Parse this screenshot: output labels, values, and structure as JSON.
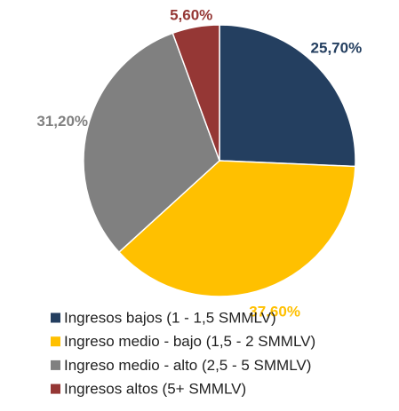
{
  "chart_data": {
    "type": "pie",
    "categories": [
      "Ingresos bajos (1 - 1,5 SMMLV)",
      "Ingreso medio - bajo (1,5 - 2 SMMLV)",
      "Ingreso medio - alto (2,5 - 5 SMMLV)",
      "Ingresos altos (5+ SMMLV)"
    ],
    "values": [
      25.7,
      37.6,
      31.2,
      5.6
    ],
    "value_labels": [
      "25,70%",
      "37,60%",
      "31,20%",
      "5,60%"
    ],
    "colors": [
      "#243f60",
      "#ffc000",
      "#808080",
      "#953735"
    ],
    "legend": "bottom"
  }
}
